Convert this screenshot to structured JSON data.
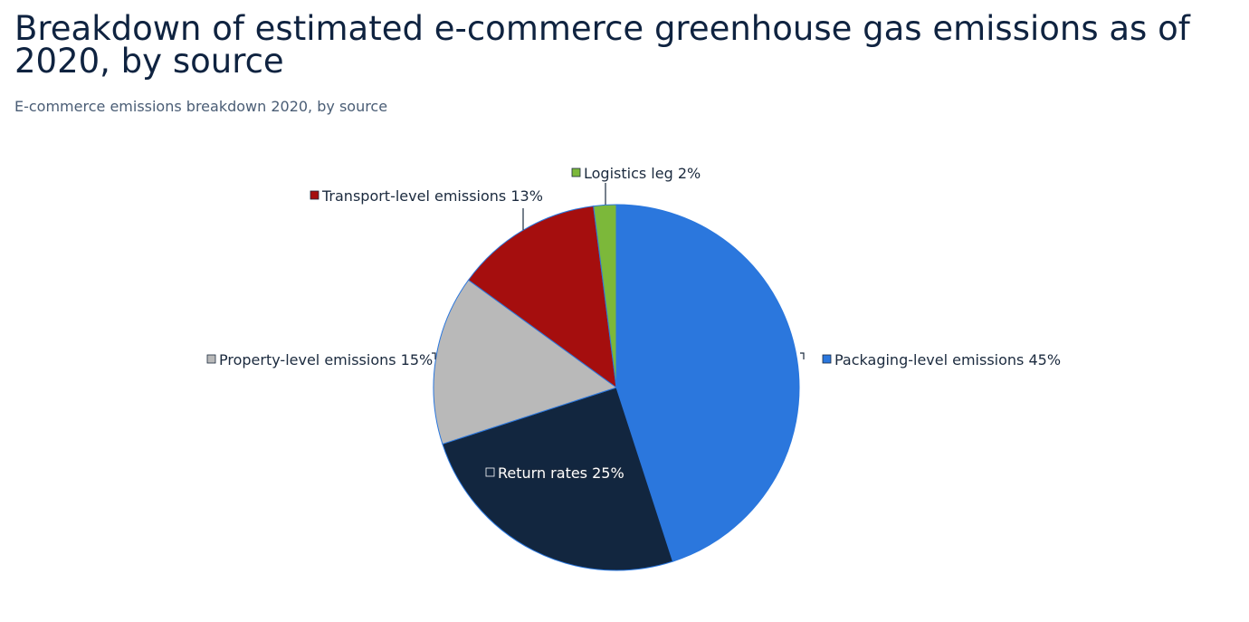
{
  "title": "Breakdown of estimated e-commerce greenhouse gas emissions as of 2020, by source",
  "subtitle": "E-commerce emissions breakdown 2020, by source",
  "chart_data": {
    "type": "pie",
    "unit": "%",
    "slices": [
      {
        "name": "Packaging-level emissions",
        "value": 45,
        "color": "#2b77dd",
        "label": "Packaging-level emissions 45%"
      },
      {
        "name": "Return rates",
        "value": 25,
        "color": "#12263f",
        "label": "Return rates 25%"
      },
      {
        "name": "Property-level emissions",
        "value": 15,
        "color": "#b9b9b9",
        "label": "Property-level emissions 15%"
      },
      {
        "name": "Transport-level emissions",
        "value": 13,
        "color": "#a50e0e",
        "label": "Transport-level emissions 13%"
      },
      {
        "name": "Logistics leg",
        "value": 2,
        "color": "#7cb83a",
        "label": "Logistics leg 2%"
      }
    ]
  }
}
